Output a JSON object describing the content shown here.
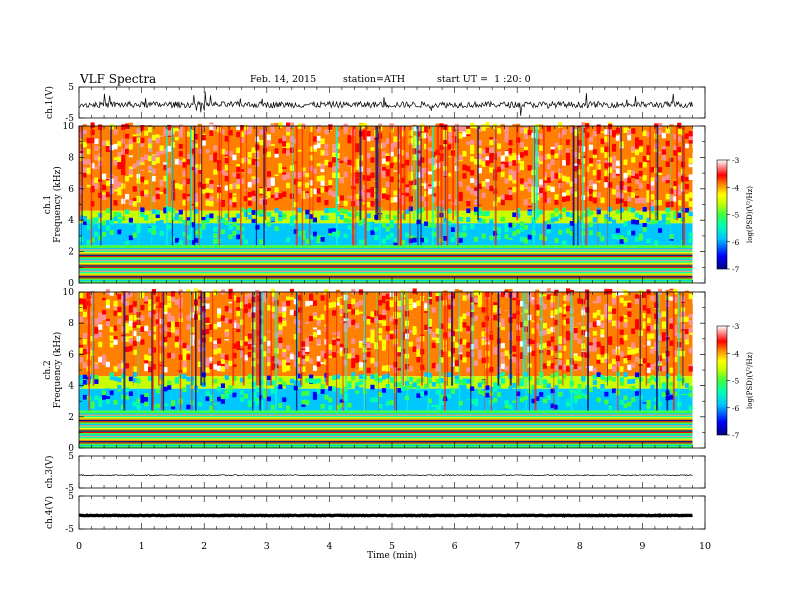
{
  "header": {
    "title": "VLF Spectra",
    "date": "Feb. 14, 2015",
    "station": "station=ATH",
    "start": "start UT =  1 :20: 0"
  },
  "chart_data": [
    {
      "type": "line",
      "ylabel": "ch.1(V)",
      "ylim": [
        -5,
        5
      ],
      "yticks": [
        "5",
        "-5"
      ],
      "xlim": [
        0,
        10
      ],
      "description_level": -0.7
    },
    {
      "type": "heatmap",
      "ylabel": "ch.1\nFrequency (kHz)",
      "ylim": [
        0,
        10
      ],
      "yticks": [
        "0",
        "2",
        "4",
        "6",
        "8",
        "10"
      ],
      "xlim": [
        0,
        10
      ],
      "colorbar": {
        "label": "log(PSD)(V²/Hz)",
        "ticks": [
          "-3",
          "-4",
          "-5",
          "-6",
          "-7"
        ],
        "range": [
          -7,
          -3
        ]
      }
    },
    {
      "type": "heatmap",
      "ylabel": "ch.2\nFrequency (kHz)",
      "ylim": [
        0,
        10
      ],
      "yticks": [
        "0",
        "2",
        "4",
        "6",
        "8",
        "10"
      ],
      "xlim": [
        0,
        10
      ],
      "colorbar": {
        "label": "log(PSD)(V²/Hz)",
        "ticks": [
          "-3",
          "-4",
          "-5",
          "-6",
          "-7"
        ],
        "range": [
          -7,
          -3
        ]
      }
    },
    {
      "type": "line",
      "ylabel": "ch.3(V)",
      "ylim": [
        -5,
        5
      ],
      "yticks": [
        "5",
        "-5"
      ],
      "xlim": [
        0,
        10
      ]
    },
    {
      "type": "line",
      "ylabel": "ch.4(V)",
      "ylim": [
        -5,
        5
      ],
      "yticks": [
        "5",
        "-5"
      ],
      "xlim": [
        0,
        10
      ],
      "xlabel": "Time (min)",
      "xticks": [
        "0",
        "1",
        "2",
        "3",
        "4",
        "5",
        "6",
        "7",
        "8",
        "9",
        "10"
      ]
    }
  ],
  "data_end_min": 9.8,
  "colors": {
    "colormap": [
      "#000080",
      "#0000ff",
      "#00c8ff",
      "#00ffb0",
      "#40ff40",
      "#c8ff00",
      "#ffff00",
      "#ff8000",
      "#ff0000",
      "#ff9090",
      "#ffffff"
    ]
  }
}
